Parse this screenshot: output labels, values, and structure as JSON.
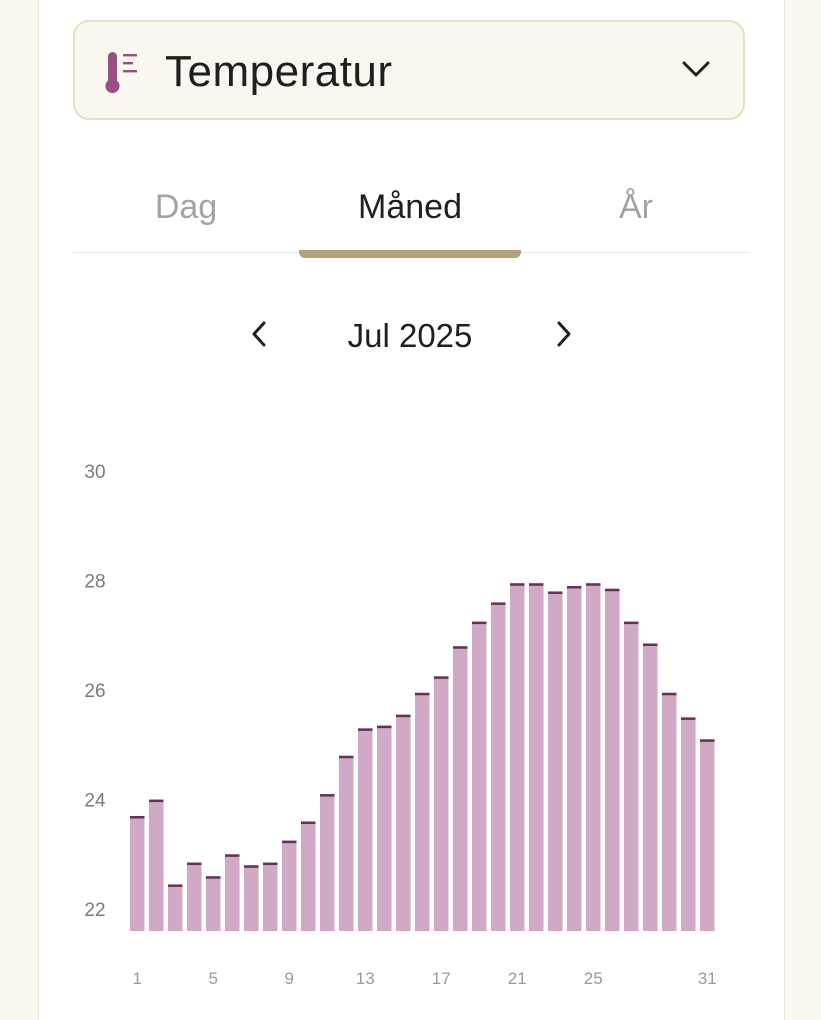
{
  "metric_selector": {
    "label": "Temperatur",
    "icon": "thermometer-icon",
    "chevron_icon": "chevron-down-icon"
  },
  "tabs": [
    {
      "label": "Dag",
      "active": false
    },
    {
      "label": "Måned",
      "active": true
    },
    {
      "label": "År",
      "active": false
    }
  ],
  "period": {
    "label": "Jul 2025",
    "prev_icon": "chevron-left-icon",
    "next_icon": "chevron-right-icon"
  },
  "colors": {
    "bar_fill": "#d0a9c6",
    "bar_cap": "#6a2f57",
    "accent": "#b2a27a",
    "icon": "#9a4f82"
  },
  "chart_data": {
    "type": "bar",
    "title": "",
    "xlabel": "",
    "ylabel": "",
    "ylim": [
      21.6,
      30
    ],
    "yticks": [
      22,
      24,
      26,
      28,
      30
    ],
    "xticks": [
      1,
      5,
      9,
      13,
      17,
      21,
      25,
      31
    ],
    "categories": [
      1,
      2,
      3,
      4,
      5,
      6,
      7,
      8,
      9,
      10,
      11,
      12,
      13,
      14,
      15,
      16,
      17,
      18,
      19,
      20,
      21,
      22,
      23,
      24,
      25,
      26,
      27,
      28,
      29,
      30,
      31
    ],
    "values": [
      23.7,
      24.0,
      22.45,
      22.85,
      22.6,
      23.0,
      22.8,
      22.85,
      23.25,
      23.6,
      24.1,
      24.8,
      25.3,
      25.35,
      25.55,
      25.95,
      26.25,
      26.8,
      27.25,
      27.6,
      27.95,
      27.95,
      27.8,
      27.9,
      27.95,
      27.85,
      27.25,
      26.85,
      25.95,
      25.5,
      25.1
    ]
  }
}
